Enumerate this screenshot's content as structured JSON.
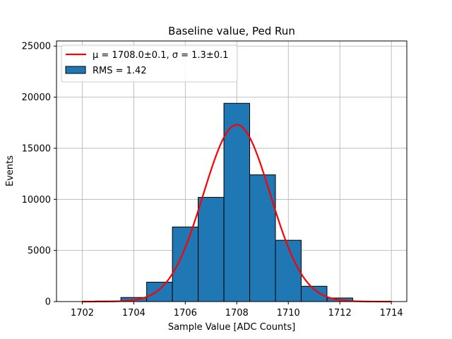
{
  "chart_data": {
    "type": "bar",
    "title": "Baseline value, Ped Run",
    "xlabel": "Sample Value [ADC Counts]",
    "ylabel": "Events",
    "xlim": [
      1701.0,
      1714.6
    ],
    "ylim": [
      0,
      25500
    ],
    "grid": true,
    "legend_position": "top-left",
    "xticks": [
      1702,
      1704,
      1706,
      1708,
      1710,
      1712,
      1714
    ],
    "yticks": [
      0,
      5000,
      10000,
      15000,
      20000,
      25000
    ],
    "xtick_labels": [
      "1702",
      "1704",
      "1706",
      "1708",
      "1710",
      "1712",
      "1714"
    ],
    "ytick_labels": [
      "0",
      "5000",
      "10000",
      "15000",
      "20000",
      "25000"
    ],
    "histogram": {
      "name": "RMS = 1.42",
      "color": "#1f77b4",
      "edge_color": "#000000",
      "bin_edges": [
        1702.5,
        1703.5,
        1704.5,
        1705.5,
        1706.5,
        1707.5,
        1708.5,
        1709.5,
        1710.5,
        1711.5,
        1712.5,
        1713.5
      ],
      "counts": [
        50,
        400,
        1900,
        7300,
        10200,
        19400,
        12400,
        6000,
        1500,
        350,
        30
      ]
    },
    "fit": {
      "name": "μ = 1708.0±0.1, σ = 1.3±0.1",
      "color": "#ff0000",
      "mu": 1708.0,
      "sigma": 1.3,
      "amplitude": 17300,
      "x_range": [
        1702,
        1714
      ]
    }
  }
}
